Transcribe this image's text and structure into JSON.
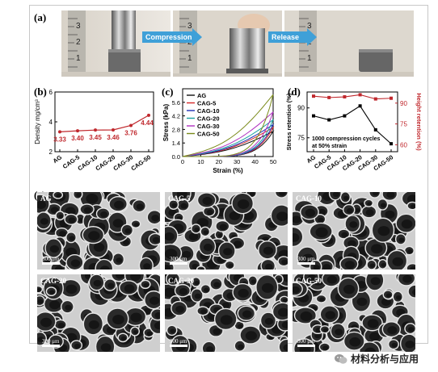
{
  "panels": {
    "a": {
      "label": "(a)",
      "arrow_compression": "Compression",
      "arrow_release": "Release"
    },
    "b": {
      "label": "(b)"
    },
    "c": {
      "label": "(c)"
    },
    "d": {
      "label": "(d)"
    },
    "e": {
      "label": "(e)"
    }
  },
  "chart_data": [
    {
      "id": "b",
      "type": "line",
      "categories": [
        "AG",
        "CAG-5",
        "CAG-10",
        "CAG-20",
        "CAG-30",
        "CAG-50"
      ],
      "values": [
        3.33,
        3.4,
        3.45,
        3.46,
        3.76,
        4.44
      ],
      "data_labels": [
        "3.33",
        "3.40",
        "3.45",
        "3.46",
        "3.76",
        "4.44"
      ],
      "ylabel": "Density mg/cm³",
      "ylim": [
        2,
        6
      ],
      "yticks": [
        2,
        4,
        6
      ],
      "color": "#c0282d"
    },
    {
      "id": "c",
      "type": "line",
      "xlabel": "Strain (%)",
      "ylabel": "Stress (kPa)",
      "xlim": [
        0,
        50
      ],
      "ylim": [
        0,
        7.0
      ],
      "xticks": [
        0,
        10,
        20,
        30,
        40,
        50
      ],
      "yticks": [
        0.0,
        1.4,
        2.8,
        4.2,
        5.6
      ],
      "ytick_labels": [
        "0.0",
        "1.4",
        "2.8",
        "4.2",
        "5.6"
      ],
      "legend_position": "top-left",
      "series": [
        {
          "name": "AG",
          "color": "#111111",
          "peak": 2.6
        },
        {
          "name": "CAG-5",
          "color": "#d62728",
          "peak": 3.0
        },
        {
          "name": "CAG-10",
          "color": "#1f2fb4",
          "peak": 3.3
        },
        {
          "name": "CAG-20",
          "color": "#1aa0a0",
          "peak": 3.8
        },
        {
          "name": "CAG-30",
          "color": "#b030c0",
          "peak": 4.6
        },
        {
          "name": "CAG-50",
          "color": "#7a8a1a",
          "peak": 6.4
        }
      ]
    },
    {
      "id": "d",
      "type": "line",
      "categories": [
        "AG",
        "CAG-5",
        "CAG-10",
        "CAG-20",
        "CAG-30",
        "CAG-50"
      ],
      "annotation": [
        "1000 compression cycles",
        "at 50% strain"
      ],
      "left_axis": {
        "label": "Stress retention (%)",
        "ylim": [
          68,
          98
        ],
        "yticks": [
          75,
          90
        ],
        "color": "#000000"
      },
      "right_axis": {
        "label": "Height retention (%)",
        "ylim": [
          55,
          98
        ],
        "yticks": [
          60,
          75,
          90
        ],
        "color": "#c0282d"
      },
      "series": [
        {
          "name": "Stress retention",
          "axis": "left",
          "color": "#000000",
          "values": [
            86,
            84,
            86,
            91,
            79,
            72
          ]
        },
        {
          "name": "Height retention",
          "axis": "right",
          "color": "#c0282d",
          "values": [
            95,
            94,
            94.5,
            96,
            93,
            93.5
          ]
        }
      ]
    }
  ],
  "sem": [
    {
      "label": "AG",
      "scale": "300 μm"
    },
    {
      "label": "CAG-5",
      "scale": "300 μm"
    },
    {
      "label": "CAG-10",
      "scale": "300 μm"
    },
    {
      "label": "CAG-20",
      "scale": "300 μm"
    },
    {
      "label": "CAG-30",
      "scale": "300 μm"
    },
    {
      "label": "CAG-50",
      "scale": "300 μm"
    }
  ],
  "watermark": {
    "text": "材料分析与应用",
    "icon": "wechat-icon"
  },
  "ruler_digits": [
    "3",
    "2",
    "1"
  ]
}
